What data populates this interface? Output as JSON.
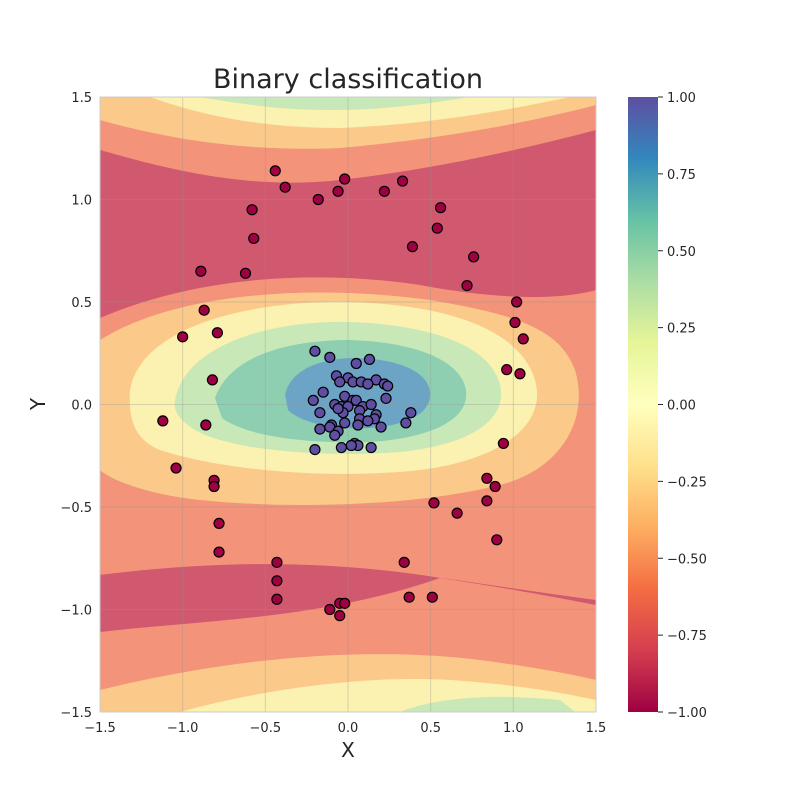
{
  "chart_data": {
    "type": "scatter",
    "title": "Binary classification",
    "xlabel": "X",
    "ylabel": "Y",
    "xlim": [
      -1.5,
      1.5
    ],
    "ylim": [
      -1.5,
      1.5
    ],
    "x_ticks": [
      "−1.5",
      "−1.0",
      "−0.5",
      "0.0",
      "0.5",
      "1.0",
      "1.5"
    ],
    "x_tick_values": [
      -1.5,
      -1.0,
      -0.5,
      0.0,
      0.5,
      1.0,
      1.5
    ],
    "y_ticks": [
      "−1.5",
      "−1.0",
      "−0.5",
      "0.0",
      "0.5",
      "1.0",
      "1.5"
    ],
    "y_tick_values": [
      -1.5,
      -1.0,
      -0.5,
      0.0,
      0.5,
      1.0,
      1.5
    ],
    "grid": true,
    "colormap": "Spectral",
    "colorbar": {
      "range": [
        -1.0,
        1.0
      ],
      "ticks": [
        "−1.00",
        "−0.75",
        "−0.50",
        "−0.25",
        "0.00",
        "0.25",
        "0.50",
        "0.75",
        "1.00"
      ],
      "tick_values": [
        -1.0,
        -0.75,
        -0.5,
        -0.25,
        0.0,
        0.25,
        0.5,
        0.75,
        1.0
      ],
      "colors": [
        "#9e0142",
        "#d53e4f",
        "#f46d43",
        "#fdae61",
        "#fee08b",
        "#ffffbf",
        "#e6f598",
        "#abdda4",
        "#66c2a5",
        "#3288bd",
        "#5e4fa2"
      ]
    },
    "decision_surface": {
      "type": "filled_contour",
      "description_levels": [
        -1.0,
        -0.75,
        -0.5,
        -0.25,
        0.0,
        0.25,
        0.5,
        0.75,
        1.0
      ]
    },
    "series": [
      {
        "label": 1,
        "color": "#5e4fa2",
        "points": [
          [
            -0.2,
            0.26
          ],
          [
            -0.11,
            0.23
          ],
          [
            0.05,
            0.2
          ],
          [
            0.13,
            0.22
          ],
          [
            -0.07,
            0.14
          ],
          [
            0.0,
            0.13
          ],
          [
            0.03,
            0.11
          ],
          [
            -0.05,
            0.11
          ],
          [
            0.08,
            0.11
          ],
          [
            0.17,
            0.12
          ],
          [
            0.22,
            0.1
          ],
          [
            0.24,
            0.09
          ],
          [
            0.12,
            0.1
          ],
          [
            -0.15,
            0.06
          ],
          [
            -0.21,
            0.02
          ],
          [
            -0.02,
            0.04
          ],
          [
            0.03,
            0.02
          ],
          [
            0.05,
            0.02
          ],
          [
            0.23,
            0.03
          ],
          [
            -0.08,
            0.0
          ],
          [
            -0.04,
            -0.01
          ],
          [
            0.0,
            -0.01
          ],
          [
            0.09,
            -0.01
          ],
          [
            0.14,
            0.0
          ],
          [
            -0.17,
            -0.04
          ],
          [
            -0.03,
            -0.04
          ],
          [
            0.07,
            -0.03
          ],
          [
            -0.06,
            -0.02
          ],
          [
            0.17,
            -0.05
          ],
          [
            0.38,
            -0.04
          ],
          [
            -0.1,
            -0.1
          ],
          [
            -0.02,
            -0.09
          ],
          [
            0.07,
            -0.07
          ],
          [
            0.16,
            -0.07
          ],
          [
            0.35,
            -0.09
          ],
          [
            -0.17,
            -0.12
          ],
          [
            -0.11,
            -0.11
          ],
          [
            -0.06,
            -0.13
          ],
          [
            0.06,
            -0.1
          ],
          [
            0.2,
            -0.11
          ],
          [
            0.04,
            -0.19
          ],
          [
            -0.04,
            -0.21
          ],
          [
            0.06,
            -0.2
          ],
          [
            0.14,
            -0.21
          ],
          [
            -0.2,
            -0.22
          ],
          [
            -0.08,
            -0.15
          ],
          [
            0.02,
            -0.2
          ],
          [
            0.12,
            -0.08
          ]
        ]
      },
      {
        "label": -1,
        "color": "#9e0142",
        "points": [
          [
            -0.44,
            1.14
          ],
          [
            -0.02,
            1.1
          ],
          [
            0.33,
            1.09
          ],
          [
            -0.38,
            1.06
          ],
          [
            -0.06,
            1.04
          ],
          [
            0.22,
            1.04
          ],
          [
            -0.18,
            1.0
          ],
          [
            -0.58,
            0.95
          ],
          [
            0.56,
            0.96
          ],
          [
            0.54,
            0.86
          ],
          [
            -0.57,
            0.81
          ],
          [
            0.39,
            0.77
          ],
          [
            0.76,
            0.72
          ],
          [
            -0.89,
            0.65
          ],
          [
            -0.62,
            0.64
          ],
          [
            0.72,
            0.58
          ],
          [
            1.02,
            0.5
          ],
          [
            -0.87,
            0.46
          ],
          [
            1.01,
            0.4
          ],
          [
            -0.79,
            0.35
          ],
          [
            -1.0,
            0.33
          ],
          [
            1.06,
            0.32
          ],
          [
            0.96,
            0.17
          ],
          [
            1.04,
            0.15
          ],
          [
            -0.82,
            0.12
          ],
          [
            -1.12,
            -0.08
          ],
          [
            -0.86,
            -0.1
          ],
          [
            0.94,
            -0.19
          ],
          [
            -1.04,
            -0.31
          ],
          [
            0.84,
            -0.36
          ],
          [
            -0.81,
            -0.37
          ],
          [
            0.89,
            -0.4
          ],
          [
            -0.81,
            -0.4
          ],
          [
            0.52,
            -0.48
          ],
          [
            0.84,
            -0.47
          ],
          [
            0.66,
            -0.53
          ],
          [
            -0.78,
            -0.58
          ],
          [
            0.9,
            -0.66
          ],
          [
            -0.78,
            -0.72
          ],
          [
            -0.43,
            -0.77
          ],
          [
            0.34,
            -0.77
          ],
          [
            -0.43,
            -0.86
          ],
          [
            -0.43,
            -0.95
          ],
          [
            0.37,
            -0.94
          ],
          [
            0.51,
            -0.94
          ],
          [
            -0.05,
            -0.97
          ],
          [
            -0.11,
            -1.0
          ],
          [
            -0.05,
            -1.03
          ],
          [
            -0.02,
            -0.97
          ]
        ]
      }
    ]
  }
}
